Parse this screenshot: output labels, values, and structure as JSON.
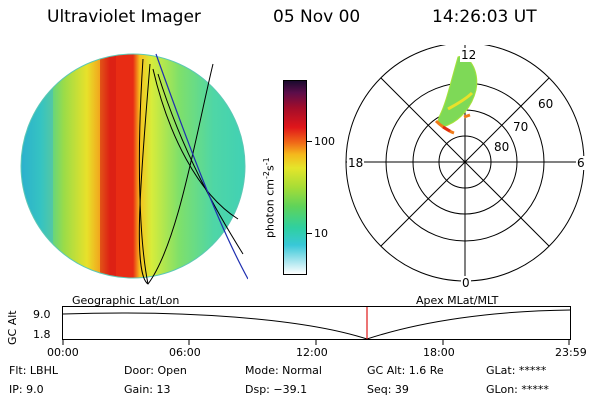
{
  "header": {
    "instrument": "Ultraviolet Imager",
    "date": "05 Nov 00",
    "time": "14:26:03 UT"
  },
  "colorbar": {
    "label": "photon cm",
    "label_sup1": "-2",
    "label_mid": "s",
    "label_sup2": "-1",
    "tick_high": "100",
    "tick_low": "10"
  },
  "polar_plot": {
    "label_top": "12",
    "label_bottom": "0",
    "label_left": "18",
    "label_right": "6",
    "lat_60": "60",
    "lat_70": "70",
    "lat_80": "80"
  },
  "timeline": {
    "left_title": "Geographic Lat/Lon",
    "right_title": "Apex MLat/MLT",
    "ylabel": "GC Alt",
    "y_top": "9.0",
    "y_bottom": "1.8",
    "ticks": [
      "00:00",
      "06:00",
      "12:00",
      "18:00",
      "23:59"
    ]
  },
  "info": {
    "filter": "Flt: LBHL",
    "ip": "IP:  9.0",
    "door": "Door: Open",
    "gain": "Gain: 13",
    "mode": "Mode: Normal",
    "dsp": "Dsp:  −39.1",
    "gc_alt": "GC Alt: 1.6 Re",
    "seq": "Seq: 39",
    "glat": "GLat: *****",
    "glon": "GLon: *****"
  }
}
